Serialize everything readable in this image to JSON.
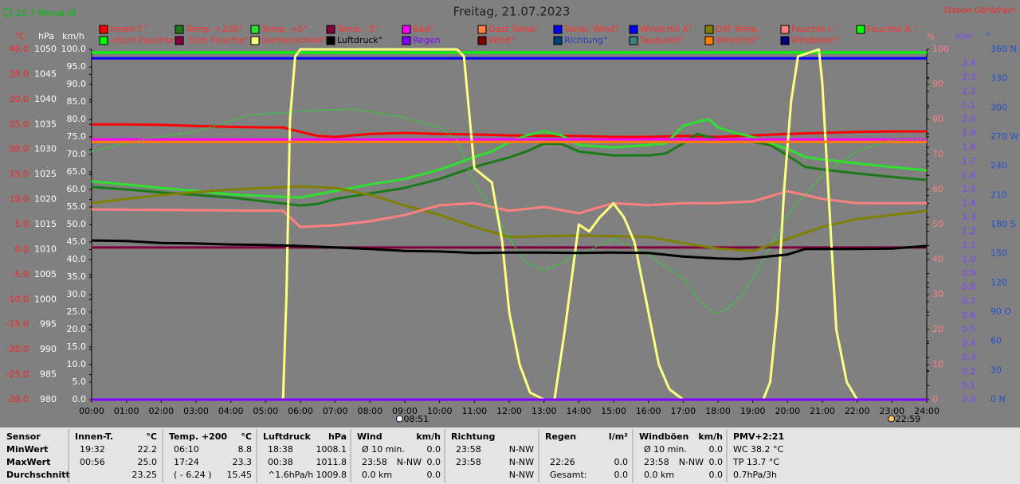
{
  "chart_data": {
    "type": "line",
    "title": "Freitag, 21.07.2023",
    "note": "21.7 Monat-Ø",
    "station": "Station Göritzhain",
    "xlim": [
      0,
      24
    ],
    "xticks": [
      {
        "value": 0,
        "label": "00:00"
      },
      {
        "value": 1,
        "label": "01:00"
      },
      {
        "value": 2,
        "label": "02:00"
      },
      {
        "value": 3,
        "label": "03:00"
      },
      {
        "value": 4,
        "label": "04:00"
      },
      {
        "value": 5,
        "label": "05:00"
      },
      {
        "value": 6,
        "label": "06:00"
      },
      {
        "value": 7,
        "label": "07:00"
      },
      {
        "value": 8,
        "label": "08:00"
      },
      {
        "value": 9,
        "label": "09:00"
      },
      {
        "value": 10,
        "label": "10:00"
      },
      {
        "value": 11,
        "label": "11:00"
      },
      {
        "value": 12,
        "label": "12:00"
      },
      {
        "value": 13,
        "label": "13:00"
      },
      {
        "value": 14,
        "label": "14:00"
      },
      {
        "value": 15,
        "label": "15:00"
      },
      {
        "value": 16,
        "label": "16:00"
      },
      {
        "value": 17,
        "label": "17:00"
      },
      {
        "value": 18,
        "label": "18:00"
      },
      {
        "value": 19,
        "label": "19:00"
      },
      {
        "value": 20,
        "label": "20:00"
      },
      {
        "value": 21,
        "label": "21:00"
      },
      {
        "value": 22,
        "label": "22:00"
      },
      {
        "value": 23,
        "label": "23:00"
      },
      {
        "value": 24,
        "label": "24:00"
      }
    ],
    "y_axes": [
      {
        "label": "°C",
        "color": "#ff2020",
        "ylim": [
          -30,
          40
        ],
        "yticks": [
          {
            "value": 40,
            "label": "40.0"
          },
          {
            "value": 35,
            "label": "35.0"
          },
          {
            "value": 30,
            "label": "30.0"
          },
          {
            "value": 25,
            "label": "25.0"
          },
          {
            "value": 20,
            "label": "20.0"
          },
          {
            "value": 15,
            "label": "15.0"
          },
          {
            "value": 10,
            "label": "10.0"
          },
          {
            "value": 5,
            "label": "5.0"
          },
          {
            "value": 0,
            "label": "0.0"
          },
          {
            "value": -5,
            "label": "-5.0"
          },
          {
            "value": -10,
            "label": "-10.0"
          },
          {
            "value": -15,
            "label": "-15.0"
          },
          {
            "value": -20,
            "label": "-20.0"
          },
          {
            "value": -25,
            "label": "-25.0"
          },
          {
            "value": -30,
            "label": "-30.0"
          }
        ]
      },
      {
        "label": "hPa",
        "color": "#ffffff",
        "ylim": [
          980,
          1050
        ],
        "yticks": [
          1050,
          1045,
          1040,
          1035,
          1030,
          1025,
          1020,
          1015,
          1010,
          1005,
          1000,
          995,
          990,
          985,
          980
        ]
      },
      {
        "label": "km/h",
        "color": "#ffffff",
        "ylim": [
          0,
          100
        ],
        "yticks": [
          {
            "value": 100,
            "label": "100.0"
          },
          {
            "value": 95,
            "label": "95.0"
          },
          {
            "value": 90,
            "label": "90.0"
          },
          {
            "value": 85,
            "label": "85.0"
          },
          {
            "value": 80,
            "label": "80.0"
          },
          {
            "value": 75,
            "label": "75.0"
          },
          {
            "value": 70,
            "label": "70.0"
          },
          {
            "value": 65,
            "label": "65.0"
          },
          {
            "value": 60,
            "label": "60.0"
          },
          {
            "value": 55,
            "label": "55.0"
          },
          {
            "value": 50,
            "label": "50.0"
          },
          {
            "value": 45,
            "label": "45.0"
          },
          {
            "value": 40,
            "label": "40.0"
          },
          {
            "value": 35,
            "label": "35.0"
          },
          {
            "value": 30,
            "label": "30.0"
          },
          {
            "value": 25,
            "label": "25.0"
          },
          {
            "value": 20,
            "label": "20.0"
          },
          {
            "value": 15,
            "label": "15.0"
          },
          {
            "value": 10,
            "label": "10.0"
          },
          {
            "value": 5,
            "label": "5.0"
          },
          {
            "value": 0,
            "label": "0.0"
          }
        ]
      },
      {
        "label": "%",
        "color": "#ff8080",
        "ylim": [
          0,
          100
        ],
        "yticks": [
          100,
          90,
          80,
          70,
          60,
          50,
          40,
          30,
          20,
          10,
          0
        ]
      },
      {
        "label": "l/m²",
        "color": "#8040ff",
        "ylim": [
          0,
          2.5
        ],
        "yticks": [
          2.4,
          2.3,
          2.2,
          2.1,
          {
            "value": 2,
            "label": "2.0"
          },
          1.9,
          1.8,
          1.7,
          1.6,
          1.5,
          1.4,
          1.3,
          1.2,
          1.1,
          {
            "value": 1,
            "label": "1.0"
          },
          0.9,
          0.8,
          0.7,
          0.6,
          0.5,
          0.4,
          0.3,
          0.2,
          0.1,
          {
            "value": 0,
            "label": "0.0"
          }
        ]
      },
      {
        "label": "°",
        "color": "#2050d0",
        "ylim": [
          0,
          360
        ],
        "yticks": [
          {
            "value": 360,
            "label": "360 N"
          },
          330,
          300,
          {
            "value": 270,
            "label": "270 W"
          },
          240,
          210,
          {
            "value": 180,
            "label": "180 S"
          },
          150,
          120,
          {
            "value": 90,
            "label": "90 O"
          },
          60,
          30,
          {
            "value": 0,
            "label": "0 N"
          }
        ]
      }
    ],
    "series": [
      {
        "name": "Innen-T.°",
        "color": "#ff0000",
        "axis": 0,
        "x": [
          0,
          1,
          2,
          3,
          4,
          5,
          5.5,
          6,
          6.5,
          7,
          8,
          9,
          10,
          11,
          12,
          13,
          14,
          15,
          16,
          17,
          18,
          19,
          20,
          21,
          22,
          23,
          24
        ],
        "values": [
          25.0,
          25.0,
          24.9,
          24.7,
          24.5,
          24.4,
          24.4,
          23.5,
          22.7,
          22.5,
          23.1,
          23.3,
          23.1,
          23.0,
          22.8,
          22.7,
          22.7,
          22.5,
          22.5,
          22.7,
          22.5,
          22.8,
          23.1,
          23.3,
          23.5,
          23.6,
          23.6
        ]
      },
      {
        "name": "Temp. +200°",
        "color": "#1a7a1a",
        "axis": 0,
        "x": [
          0,
          1,
          2,
          3,
          4,
          5,
          6,
          6.5,
          7,
          8,
          9,
          10,
          11,
          12,
          12.5,
          13,
          13.5,
          14,
          15,
          16,
          16.5,
          17,
          17.4,
          18,
          19,
          19.5,
          20,
          20.5,
          21,
          22,
          23,
          24
        ],
        "values": [
          12.5,
          12.0,
          11.4,
          10.9,
          10.4,
          9.6,
          8.8,
          9.1,
          10.1,
          11.2,
          12.3,
          14.1,
          16.5,
          18.4,
          19.6,
          21.2,
          21.1,
          19.6,
          18.8,
          18.8,
          19.2,
          21.2,
          23.1,
          22.0,
          21.5,
          20.9,
          18.8,
          16.5,
          16.0,
          15.2,
          14.5,
          13.9
        ]
      },
      {
        "name": "Temp. +5°",
        "color": "#30e030",
        "axis": 0,
        "x": [
          0,
          1,
          2,
          3,
          4,
          5,
          6,
          7,
          8,
          9,
          10,
          10.5,
          11,
          11.5,
          12,
          12.5,
          13,
          13.5,
          14,
          15,
          16,
          16.5,
          17,
          17.5,
          17.75,
          18,
          18.5,
          19,
          20,
          20.5,
          21,
          22,
          23,
          24
        ],
        "values": [
          13.6,
          13.0,
          12.3,
          11.7,
          11.0,
          10.7,
          10.4,
          11.7,
          13.0,
          14.1,
          16.0,
          17.2,
          18.5,
          19.6,
          21.5,
          22.8,
          23.6,
          22.8,
          20.9,
          20.4,
          20.9,
          21.2,
          24.7,
          25.7,
          26.0,
          24.4,
          23.3,
          22.5,
          20.1,
          18.5,
          18.0,
          17.2,
          16.5,
          15.8
        ]
      },
      {
        "name": "Temp. -5°",
        "color": "#800040",
        "axis": 0,
        "x": [
          0,
          24
        ],
        "values": [
          0.4,
          0.4
        ]
      },
      {
        "name": "Bad°",
        "color": "#ff00ff",
        "axis": 0,
        "x": [
          0,
          24
        ],
        "values": [
          22.0,
          22.0
        ]
      },
      {
        "name": "Gast Temp°",
        "color": "#ff8040"
      },
      {
        "name": "Temp. Wind°",
        "color": "#0000ff"
      },
      {
        "name": "Windchill X°",
        "color": "#0000ff",
        "axis": 0,
        "x": [
          0,
          24
        ],
        "values": [
          38.2,
          38.2
        ]
      },
      {
        "name": "Diff Temp.",
        "color": "#808000",
        "axis": 0,
        "x": [
          0,
          2,
          4,
          6,
          7,
          8,
          9,
          10,
          11,
          12,
          14,
          16,
          17,
          18,
          19,
          20,
          21,
          22,
          24
        ],
        "values": [
          9.3,
          10.9,
          12.0,
          12.6,
          12.3,
          10.9,
          8.8,
          6.9,
          4.5,
          2.5,
          2.8,
          2.5,
          1.3,
          0.2,
          -0.3,
          2.1,
          4.5,
          6.1,
          7.7
        ]
      },
      {
        "name": "Feuchte I.°",
        "color": "#ff8080",
        "axis": 3,
        "x": [
          0,
          5.5,
          6,
          7,
          8,
          9,
          10,
          11,
          12,
          13,
          14,
          15,
          16,
          17,
          18,
          19,
          20,
          21,
          22,
          24
        ],
        "values": [
          54.3,
          53.9,
          49.3,
          49.8,
          50.9,
          52.7,
          55.5,
          56.1,
          53.9,
          55.0,
          53.2,
          56.1,
          55.5,
          56.1,
          56.1,
          56.6,
          59.5,
          57.3,
          56.1,
          56.1
        ]
      },
      {
        "name": "Feuchte A.°",
        "color": "#00ff00",
        "axis": 3,
        "x": [
          0,
          24
        ],
        "values": [
          99.1,
          99.1
        ]
      },
      {
        "name": "+5cm Feuchte°",
        "color": "#00ff00",
        "dash": true,
        "axis": 3,
        "x": [
          0,
          1.5,
          3,
          4.5,
          6,
          7.5,
          9,
          10,
          10.5,
          11,
          11.5,
          12,
          12.5,
          13,
          14,
          15,
          16,
          17,
          17.5,
          18,
          18.5,
          19,
          20,
          21,
          22,
          23,
          24
        ],
        "values": [
          70.9,
          74.3,
          76.6,
          81.1,
          82.3,
          83.0,
          80.5,
          77.7,
          74.3,
          61.8,
          55.0,
          45.9,
          39.1,
          36.8,
          41.4,
          45.9,
          41.4,
          34.5,
          27.7,
          24.3,
          27.7,
          34.5,
          52.7,
          64.1,
          70.9,
          74.3,
          74.3
        ]
      },
      {
        "name": "-5cm Feuchte°",
        "color": "#800040"
      },
      {
        "name": "Sonnenschein°",
        "color": "#ffff80",
        "axis": 3,
        "x": [
          0,
          5.5,
          5.6,
          5.7,
          5.85,
          6,
          10.5,
          10.7,
          11,
          11.5,
          11.8,
          12,
          12.3,
          12.6,
          13,
          13.3,
          13.6,
          14,
          14.3,
          14.6,
          15,
          15.3,
          15.6,
          16,
          16.3,
          16.6,
          17,
          19.3,
          19.5,
          19.7,
          19.9,
          20.1,
          20.3,
          20.9,
          21,
          21.2,
          21.4,
          21.7,
          22,
          24
        ],
        "values": [
          0,
          0,
          30,
          80,
          98,
          100,
          100,
          98,
          66,
          62,
          45,
          25,
          10,
          2,
          0,
          0,
          20,
          50,
          48,
          52,
          56,
          52,
          45,
          25,
          10,
          3,
          0,
          0,
          5,
          25,
          60,
          85,
          98,
          100,
          90,
          55,
          20,
          5,
          0,
          0
        ]
      },
      {
        "name": "Luftdruck°",
        "color": "#000000",
        "label_color": "#000000",
        "axis": 1,
        "x": [
          0,
          1,
          2,
          3,
          4,
          5,
          6,
          7,
          8,
          9,
          10,
          11,
          12,
          13,
          14,
          15,
          16,
          17,
          18,
          18.6,
          19,
          20,
          20.5,
          21,
          22,
          23,
          24
        ],
        "values": [
          1011.8,
          1011.7,
          1011.3,
          1011.2,
          1011.0,
          1010.9,
          1010.7,
          1010.4,
          1010.1,
          1009.7,
          1009.6,
          1009.3,
          1009.4,
          1009.4,
          1009.3,
          1009.4,
          1009.3,
          1008.6,
          1008.2,
          1008.1,
          1008.3,
          1009.0,
          1010.1,
          1010.1,
          1010.1,
          1010.2,
          1010.7
        ]
      },
      {
        "name": "Regen",
        "color": "#8000ff",
        "label_color": "#8000ff",
        "axis": 4,
        "x": [
          0,
          24
        ],
        "values": [
          0,
          0
        ]
      },
      {
        "name": "Wind°",
        "color": "#800000"
      },
      {
        "name": "Richtung°",
        "color": "#004080",
        "label_color": "#2040c0"
      },
      {
        "name": "Taupunkt°",
        "color": "#408080"
      },
      {
        "name": "Windchill°",
        "color": "#ff8000",
        "axis": 0,
        "x": [
          0,
          24
        ],
        "values": [
          21.5,
          21.5
        ]
      },
      {
        "name": "Windböen°",
        "color": "#000080"
      }
    ],
    "annotations": [
      {
        "x": 8.85,
        "text": "08:51"
      },
      {
        "x": 22.983,
        "text": "22:59"
      }
    ]
  },
  "table": {
    "columns": [
      {
        "title": "Sensor",
        "rows": [
          [
            "MinWert"
          ],
          [
            "MaxWert"
          ],
          [
            "Durchschnitt"
          ]
        ]
      },
      {
        "title": "Innen-T.",
        "unit": "°C",
        "rows": [
          [
            "19:32",
            "22.2"
          ],
          [
            "00:56",
            "25.0"
          ],
          [
            "23.25"
          ]
        ]
      },
      {
        "title": "Temp. +200",
        "unit": "°C",
        "rows": [
          [
            "06:10",
            "8.8"
          ],
          [
            "17:24",
            "23.3"
          ],
          [
            "( - 6.24 )",
            "15.45"
          ]
        ]
      },
      {
        "title": "Luftdruck",
        "unit": "hPa",
        "rows": [
          [
            "18:38",
            "1008.1"
          ],
          [
            "00:38",
            "1011.8"
          ],
          [
            "^1.6hPa/h",
            "1009.8"
          ]
        ]
      },
      {
        "title": "Wind",
        "unit": "km/h",
        "rows": [
          [
            "Ø 10 min.",
            "0.0"
          ],
          [
            "23:58",
            "N-NW",
            "0.0"
          ],
          [
            "0.0 km",
            "0.0"
          ]
        ]
      },
      {
        "title": "Richtung",
        "rows": [
          [
            "23:58",
            "N-NW"
          ],
          [
            "23:58",
            "N-NW"
          ],
          [
            "N-NW"
          ]
        ]
      },
      {
        "title": "Regen",
        "unit": "l/m²",
        "rows": [
          [],
          [
            "22:26",
            "0.0"
          ],
          [
            "Gesamt:",
            "0.0"
          ]
        ]
      },
      {
        "title": "Windböen",
        "unit": "km/h",
        "rows": [
          [
            "Ø 10 min.",
            "0.0"
          ],
          [
            "23:58",
            "N-NW",
            "0.0"
          ],
          [
            "0.0 km",
            "0.0"
          ]
        ]
      },
      {
        "title": "PMV+2:21",
        "rows": [
          [
            "WC 38.2 °C"
          ],
          [
            "TP 13.7 °C"
          ],
          [
            "0.7hPa/3h"
          ]
        ]
      }
    ]
  }
}
